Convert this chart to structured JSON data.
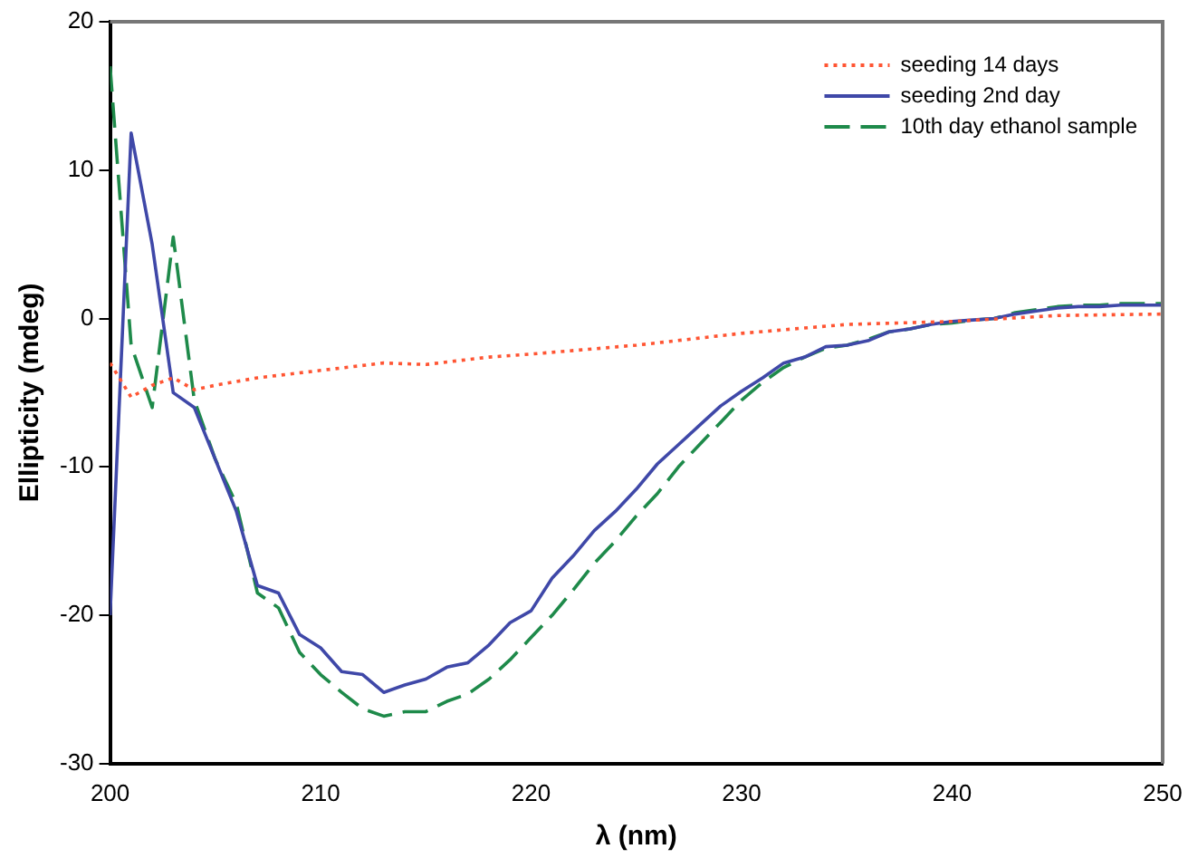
{
  "chart_data": {
    "type": "line",
    "xlabel": "λ (nm)",
    "ylabel": "Ellipticity (mdeg)",
    "xlim": [
      200,
      250
    ],
    "xticks": [
      200,
      210,
      220,
      230,
      240,
      250
    ],
    "ylim": [
      -30,
      20
    ],
    "yticks": [
      -30,
      -20,
      -10,
      0,
      10,
      20
    ],
    "grid": false,
    "legend": "top right",
    "marker": "none",
    "series": [
      {
        "name": "seeding 14 days",
        "color": "#ff5533",
        "line_style": "dotted",
        "x": [
          200,
          201,
          202,
          203,
          204,
          205,
          207,
          210,
          213,
          215,
          218,
          220,
          225,
          230,
          235,
          240,
          245,
          250
        ],
        "values": [
          -3,
          -5.3,
          -4.5,
          -4,
          -4.8,
          -4.5,
          -4,
          -3.5,
          -3,
          -3.1,
          -2.6,
          -2.4,
          -1.8,
          -1,
          -0.4,
          -0.2,
          0.2,
          0.3
        ]
      },
      {
        "name": "seeding 2nd day",
        "color": "#3f48a8",
        "line_style": "solid",
        "x": [
          200,
          201,
          202,
          203,
          204,
          205,
          206,
          207,
          208,
          209,
          210,
          211,
          212,
          213,
          214,
          215,
          216,
          217,
          218,
          219,
          220,
          221,
          222,
          223,
          224,
          225,
          226,
          227,
          228,
          229,
          230,
          231,
          232,
          233,
          234,
          235,
          236,
          237,
          238,
          239,
          240,
          241,
          242,
          243,
          244,
          245,
          246,
          247,
          248,
          249,
          250
        ],
        "values": [
          -20,
          12.5,
          5,
          -5,
          -6,
          -9.5,
          -13,
          -18,
          -18.5,
          -21.3,
          -22.2,
          -23.8,
          -24,
          -25.2,
          -24.7,
          -24.3,
          -23.5,
          -23.2,
          -22,
          -20.5,
          -19.7,
          -17.5,
          -16,
          -14.3,
          -13,
          -11.5,
          -9.8,
          -8.5,
          -7.2,
          -5.9,
          -4.9,
          -4,
          -3,
          -2.6,
          -1.9,
          -1.8,
          -1.5,
          -0.9,
          -0.7,
          -0.4,
          -0.2,
          -0.1,
          0,
          0.3,
          0.5,
          0.7,
          0.8,
          0.8,
          0.9,
          0.9,
          0.9
        ]
      },
      {
        "name": "10th day ethanol sample",
        "color": "#1e8a4a",
        "line_style": "dashed",
        "x": [
          200,
          201,
          202,
          203,
          204,
          205,
          206,
          207,
          208,
          209,
          210,
          211,
          212,
          213,
          214,
          215,
          216,
          217,
          218,
          219,
          220,
          221,
          222,
          223,
          224,
          225,
          226,
          227,
          228,
          229,
          230,
          231,
          232,
          233,
          234,
          235,
          236,
          237,
          238,
          239,
          240,
          241,
          242,
          243,
          244,
          245,
          246,
          247,
          248,
          249,
          250
        ],
        "values": [
          17,
          -1.8,
          -6,
          5.5,
          -5.5,
          -9.5,
          -12.5,
          -18.5,
          -19.5,
          -22.5,
          -24,
          -25.2,
          -26.3,
          -26.8,
          -26.5,
          -26.5,
          -25.8,
          -25.3,
          -24.3,
          -23,
          -21.5,
          -20,
          -18.3,
          -16.5,
          -15,
          -13.3,
          -11.8,
          -10,
          -8.5,
          -7,
          -5.5,
          -4.3,
          -3.3,
          -2.6,
          -2,
          -1.8,
          -1.4,
          -0.9,
          -0.7,
          -0.4,
          -0.3,
          -0.1,
          0,
          0.4,
          0.6,
          0.8,
          0.9,
          0.9,
          1,
          1,
          1
        ]
      }
    ]
  }
}
